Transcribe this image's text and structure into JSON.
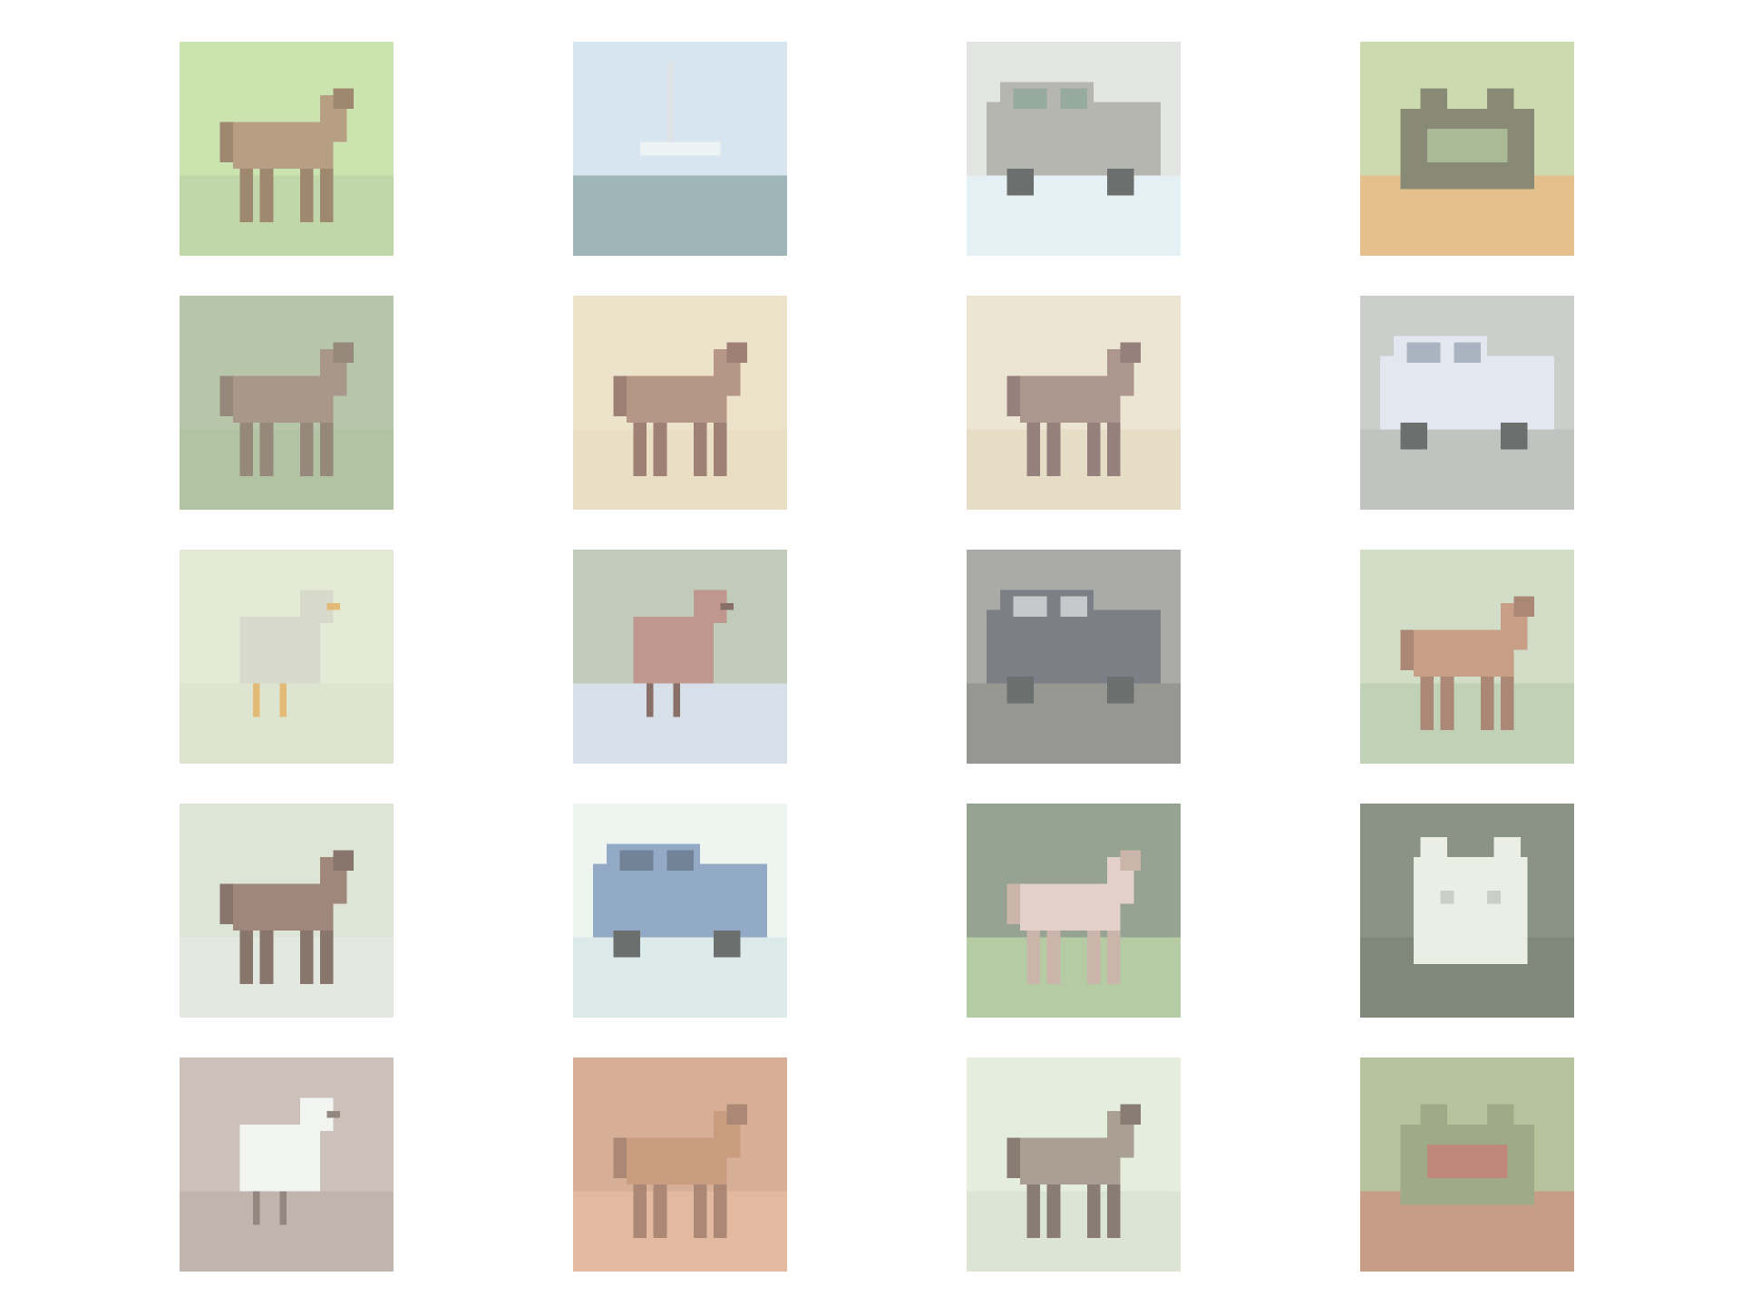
{
  "grid": {
    "rows": 5,
    "cols": 4
  },
  "tiles": [
    {
      "subject": "horse",
      "bg": "#b8d890",
      "ground": "#a8c888",
      "fg": "#9b7a55",
      "accent": "#7a5a3a"
    },
    {
      "subject": "ship",
      "bg": "#c8dcea",
      "ground": "#7a9a9e",
      "fg": "#e6eef2",
      "accent": "#d0d8dc"
    },
    {
      "subject": "truck",
      "bg": "#d8dcd8",
      "ground": "#dceaf2",
      "fg": "#9a9a92",
      "accent": "#6e8a78"
    },
    {
      "subject": "frog",
      "bg": "#b8cc90",
      "ground": "#d8a860",
      "fg": "#5a5e40",
      "accent": "#8aa070"
    },
    {
      "subject": "horse",
      "bg": "#9cb088",
      "ground": "#94ac80",
      "fg": "#8a7060",
      "accent": "#6e5a48"
    },
    {
      "subject": "deer",
      "bg": "#e6d8b8",
      "ground": "#e2d2ae",
      "fg": "#9a6e58",
      "accent": "#7a5040"
    },
    {
      "subject": "horse",
      "bg": "#e6dcc4",
      "ground": "#dcd0b0",
      "fg": "#8e6e62",
      "accent": "#6e5048"
    },
    {
      "subject": "truck",
      "bg": "#b8bcb8",
      "ground": "#a8aca8",
      "fg": "#d8e0ea",
      "accent": "#8a98aa"
    },
    {
      "subject": "bird",
      "bg": "#d8e4c8",
      "ground": "#d0dcc0",
      "fg": "#c8ccb8",
      "accent": "#d8a040"
    },
    {
      "subject": "bird",
      "bg": "#a8b8a0",
      "ground": "#c8d4e0",
      "fg": "#a87060",
      "accent": "#5a3a30"
    },
    {
      "subject": "truck",
      "bg": "#8a8a86",
      "ground": "#6e6e6a",
      "fg": "#4a4e56",
      "accent": "#b0b4b8"
    },
    {
      "subject": "horse",
      "bg": "#c0d0b0",
      "ground": "#a8c09a",
      "fg": "#b07a58",
      "accent": "#8a5a40"
    },
    {
      "subject": "horse",
      "bg": "#d0dcc8",
      "ground": "#d8e0d4",
      "fg": "#7a5a48",
      "accent": "#5a4034"
    },
    {
      "subject": "automobile",
      "bg": "#e8f2ec",
      "ground": "#cfe4e2",
      "fg": "#6a8ab0",
      "accent": "#3e5470"
    },
    {
      "subject": "horse",
      "bg": "#6e806a",
      "ground": "#98b880",
      "fg": "#d8c0b4",
      "accent": "#b89888"
    },
    {
      "subject": "cat",
      "bg": "#5e6a58",
      "ground": "#4e5a48",
      "fg": "#e4e8dc",
      "accent": "#b8bcb0"
    },
    {
      "subject": "bird",
      "bg": "#b8a8a0",
      "ground": "#a89890",
      "fg": "#eef0ee",
      "accent": "#6a5a50"
    },
    {
      "subject": "deer",
      "bg": "#c89070",
      "ground": "#d8a07a",
      "fg": "#b87850",
      "accent": "#8a5a40"
    },
    {
      "subject": "deer",
      "bg": "#dce8d0",
      "ground": "#cfdcc4",
      "fg": "#8a7a6a",
      "accent": "#5a4a3e"
    },
    {
      "subject": "frog",
      "bg": "#9aae78",
      "ground": "#b07858",
      "fg": "#7a8a5a",
      "accent": "#a85a48"
    }
  ]
}
